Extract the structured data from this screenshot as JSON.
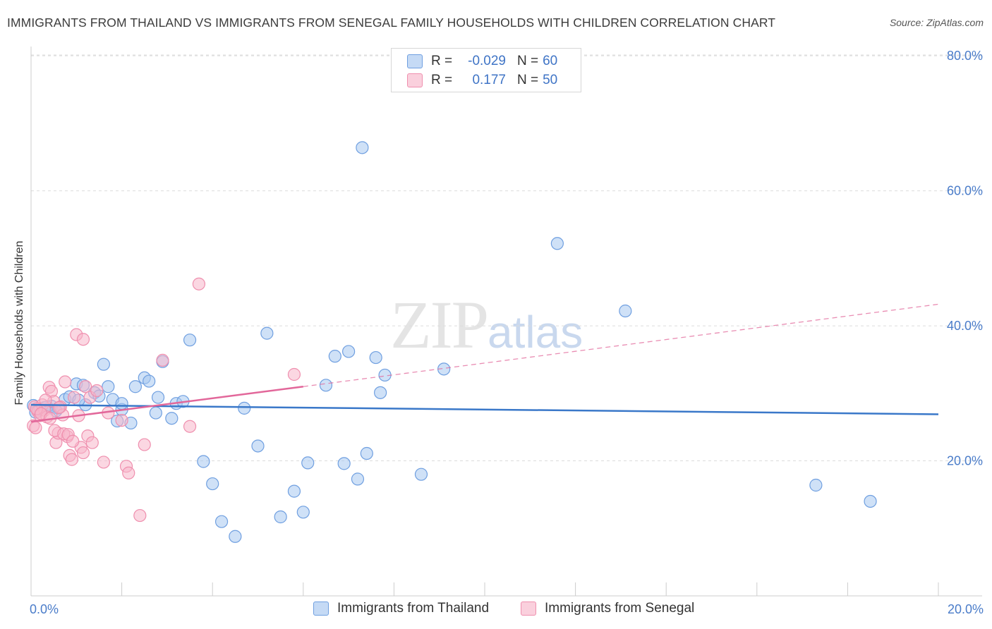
{
  "header": {
    "title": "IMMIGRANTS FROM THAILAND VS IMMIGRANTS FROM SENEGAL FAMILY HOUSEHOLDS WITH CHILDREN CORRELATION CHART",
    "source": "Source: ZipAtlas.com"
  },
  "watermark": {
    "zip": "ZIP",
    "atlas": "atlas"
  },
  "legend": {
    "rows": [
      {
        "r_label": "R =",
        "r_value": "-0.029",
        "n_label": "N =",
        "n_value": "60",
        "color": "#a8c8f0"
      },
      {
        "r_label": "R =",
        "r_value": "0.177",
        "n_label": "N =",
        "n_value": "50",
        "color": "#f7b6ca"
      }
    ]
  },
  "chart_data": {
    "type": "scatter",
    "title": "IMMIGRANTS FROM THAILAND VS IMMIGRANTS FROM SENEGAL FAMILY HOUSEHOLDS WITH CHILDREN CORRELATION CHART",
    "xlabel": "",
    "ylabel": "Family Households with Children",
    "xlim": [
      0,
      20
    ],
    "ylim": [
      0,
      82
    ],
    "x_tick_labels": [
      "0.0%",
      "20.0%"
    ],
    "y_ticks": [
      20,
      40,
      60,
      80
    ],
    "y_tick_labels": [
      "20.0%",
      "40.0%",
      "60.0%",
      "80.0%"
    ],
    "grid": true,
    "legend_position": "bottom",
    "series": [
      {
        "name": "Immigrants from Thailand",
        "color": "#6f9fe0",
        "fill": "#a8c8f0",
        "line_color": "#3a78c9",
        "trend": {
          "x": [
            0,
            20
          ],
          "y": [
            28.3,
            26.9
          ]
        },
        "points": [
          [
            0.05,
            28.2
          ],
          [
            0.1,
            27.2
          ],
          [
            0.2,
            27.6
          ],
          [
            0.3,
            27.9
          ],
          [
            0.45,
            28.1
          ],
          [
            0.6,
            27.8
          ],
          [
            0.75,
            29.1
          ],
          [
            0.85,
            29.5
          ],
          [
            1.0,
            31.4
          ],
          [
            1.15,
            31.2
          ],
          [
            1.2,
            28.3
          ],
          [
            1.4,
            30.1
          ],
          [
            1.5,
            29.6
          ],
          [
            1.6,
            34.3
          ],
          [
            1.7,
            31.0
          ],
          [
            1.8,
            29.1
          ],
          [
            2.0,
            27.6
          ],
          [
            2.0,
            28.5
          ],
          [
            1.9,
            25.9
          ],
          [
            2.2,
            25.6
          ],
          [
            2.3,
            31.0
          ],
          [
            2.5,
            32.3
          ],
          [
            2.6,
            31.8
          ],
          [
            2.8,
            29.4
          ],
          [
            2.9,
            34.7
          ],
          [
            3.1,
            26.3
          ],
          [
            3.2,
            28.5
          ],
          [
            3.5,
            37.9
          ],
          [
            3.8,
            19.9
          ],
          [
            4.0,
            16.6
          ],
          [
            4.2,
            11.0
          ],
          [
            4.5,
            8.8
          ],
          [
            4.7,
            27.8
          ],
          [
            5.0,
            22.2
          ],
          [
            5.2,
            38.9
          ],
          [
            5.5,
            11.7
          ],
          [
            5.8,
            15.5
          ],
          [
            6.0,
            12.4
          ],
          [
            6.1,
            19.7
          ],
          [
            6.5,
            31.2
          ],
          [
            6.7,
            35.5
          ],
          [
            6.9,
            19.6
          ],
          [
            7.0,
            36.2
          ],
          [
            7.2,
            17.3
          ],
          [
            7.4,
            21.1
          ],
          [
            7.6,
            35.3
          ],
          [
            7.7,
            30.1
          ],
          [
            7.8,
            32.7
          ],
          [
            7.3,
            66.4
          ],
          [
            8.6,
            18.0
          ],
          [
            9.1,
            33.6
          ],
          [
            11.6,
            52.2
          ],
          [
            13.1,
            42.2
          ],
          [
            17.3,
            16.4
          ],
          [
            18.5,
            14.0
          ],
          [
            0.35,
            28.0
          ],
          [
            0.55,
            27.4
          ],
          [
            2.75,
            27.1
          ],
          [
            3.35,
            28.8
          ],
          [
            1.05,
            29.0
          ]
        ]
      },
      {
        "name": "Immigrants from Senegal",
        "color": "#ef8fae",
        "fill": "#f7b6ca",
        "line_color": "#e2679a",
        "trend": {
          "x": [
            0,
            6
          ],
          "y": [
            25.8,
            31.0
          ]
        },
        "trend_dashed": {
          "x": [
            6,
            20
          ],
          "y": [
            31.0,
            43.2
          ]
        },
        "points": [
          [
            0.05,
            25.2
          ],
          [
            0.08,
            28.0
          ],
          [
            0.1,
            24.9
          ],
          [
            0.15,
            27.3
          ],
          [
            0.2,
            26.7
          ],
          [
            0.25,
            28.3
          ],
          [
            0.3,
            27.5
          ],
          [
            0.35,
            26.5
          ],
          [
            0.4,
            30.9
          ],
          [
            0.45,
            30.3
          ],
          [
            0.5,
            28.8
          ],
          [
            0.55,
            22.7
          ],
          [
            0.6,
            24.1
          ],
          [
            0.65,
            28.0
          ],
          [
            0.7,
            26.8
          ],
          [
            0.75,
            31.7
          ],
          [
            0.8,
            23.6
          ],
          [
            0.85,
            20.8
          ],
          [
            0.9,
            20.2
          ],
          [
            0.95,
            29.4
          ],
          [
            1.0,
            38.7
          ],
          [
            1.05,
            26.7
          ],
          [
            1.1,
            22.0
          ],
          [
            1.15,
            21.2
          ],
          [
            1.2,
            31.0
          ],
          [
            1.25,
            23.7
          ],
          [
            1.3,
            29.4
          ],
          [
            1.35,
            22.7
          ],
          [
            1.15,
            38.0
          ],
          [
            1.6,
            19.8
          ],
          [
            1.7,
            27.1
          ],
          [
            2.0,
            26.0
          ],
          [
            2.1,
            19.2
          ],
          [
            2.15,
            18.2
          ],
          [
            2.4,
            11.9
          ],
          [
            2.5,
            22.4
          ],
          [
            2.9,
            34.9
          ],
          [
            3.5,
            25.1
          ],
          [
            3.7,
            46.2
          ],
          [
            5.8,
            32.8
          ],
          [
            0.12,
            27.7
          ],
          [
            0.22,
            27.0
          ],
          [
            0.32,
            29.0
          ],
          [
            0.42,
            26.3
          ],
          [
            0.52,
            24.5
          ],
          [
            0.62,
            27.9
          ],
          [
            0.72,
            24.0
          ],
          [
            0.82,
            23.9
          ],
          [
            1.45,
            30.4
          ],
          [
            0.92,
            22.9
          ]
        ]
      }
    ]
  }
}
